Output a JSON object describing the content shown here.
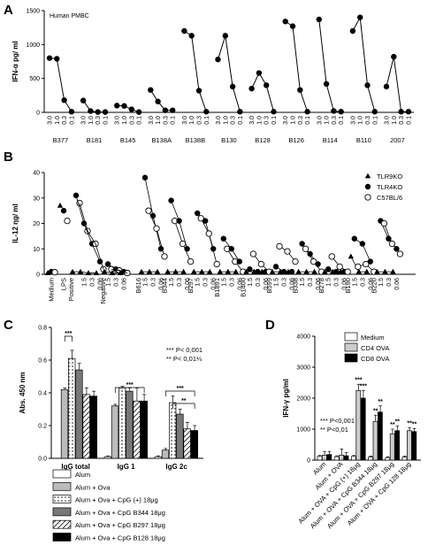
{
  "chart_data": [
    {
      "panel": "A",
      "type": "line",
      "annotation": "Human PMBC",
      "ylabel": "IFN-α pg/ ml",
      "ylim": [
        0,
        1500
      ],
      "yticks": [
        "0",
        "500",
        "1000",
        "1500"
      ],
      "dose_labels": [
        "3.0",
        "1.0",
        "0.3",
        "0.1"
      ],
      "groups": [
        {
          "name": "B377",
          "values": [
            800,
            790,
            180,
            10
          ]
        },
        {
          "name": "B181",
          "values": [
            175,
            20,
            5,
            5
          ]
        },
        {
          "name": "B145",
          "values": [
            100,
            95,
            45,
            5
          ]
        },
        {
          "name": "B138A",
          "values": [
            330,
            160,
            30,
            30
          ]
        },
        {
          "name": "B138B",
          "values": [
            1200,
            1130,
            320,
            10
          ]
        },
        {
          "name": "B130",
          "values": [
            780,
            1130,
            380,
            10
          ]
        },
        {
          "name": "B128",
          "values": [
            350,
            580,
            400,
            10
          ]
        },
        {
          "name": "B126",
          "values": [
            1340,
            1270,
            330,
            10
          ]
        },
        {
          "name": "B114",
          "values": [
            1370,
            420,
            20,
            10
          ]
        },
        {
          "name": "B110",
          "values": [
            1200,
            1400,
            400,
            10
          ]
        },
        {
          "name": "2007",
          "values": [
            380,
            820,
            10,
            10
          ]
        }
      ]
    },
    {
      "panel": "B",
      "type": "scatter",
      "ylabel": "IL-12 ηg/ ml",
      "ylim": [
        0,
        40
      ],
      "yticks": [
        "0",
        "10",
        "20",
        "30",
        "40"
      ],
      "dose_labels": [
        "1.5",
        "0.3",
        "0.06"
      ],
      "legend": [
        "TLR9KO",
        "TLR4KO",
        "C57BL/6"
      ],
      "controls": [
        {
          "name": "Medium",
          "values": [
            [
              0.5,
              1.0,
              0.8
            ]
          ]
        },
        {
          "name": "LPS",
          "values": [
            [
              27,
              25,
              21
            ]
          ]
        },
        {
          "name": "Positive",
          "values": [
            [
              1,
              31,
              28
            ],
            [
              1,
              20,
              17
            ],
            [
              0.5,
              12,
              12
            ],
            [
              0.5,
              5,
              2
            ]
          ]
        },
        {
          "name": "Negative",
          "values": [
            [
              1,
              4,
              2
            ],
            [
              0.5,
              2,
              1.5
            ],
            [
              0.5,
              1,
              0.5
            ]
          ]
        }
      ],
      "groups": [
        {
          "name": "B616",
          "values": [
            [
              1,
              38,
              25
            ],
            [
              1,
              23,
              18
            ],
            [
              1,
              10,
              7
            ]
          ]
        },
        {
          "name": "B344",
          "values": [
            [
              1,
              29,
              21
            ],
            [
              1,
              21,
              12
            ],
            [
              1,
              10,
              5
            ]
          ]
        },
        {
          "name": "B297",
          "values": [
            [
              1,
              24,
              22
            ],
            [
              1,
              21,
              16
            ],
            [
              1,
              10,
              4
            ]
          ]
        },
        {
          "name": "B1891",
          "values": [
            [
              1,
              14,
              10
            ],
            [
              1,
              10,
              5
            ],
            [
              1,
              5,
              1
            ]
          ]
        },
        {
          "name": "B1400",
          "values": [
            [
              1,
              2,
              8
            ],
            [
              1,
              1,
              4
            ],
            [
              1,
              1,
              1
            ]
          ]
        },
        {
          "name": "B599",
          "values": [
            [
              1,
              3,
              11
            ],
            [
              1,
              1,
              9
            ],
            [
              1,
              1,
              5
            ]
          ]
        },
        {
          "name": "B338",
          "values": [
            [
              1,
              12,
              10
            ],
            [
              1,
              8,
              5
            ],
            [
              1,
              4,
              1
            ]
          ]
        },
        {
          "name": "B278",
          "values": [
            [
              1,
              2,
              7
            ],
            [
              1,
              1,
              3
            ],
            [
              1,
              1,
              1
            ]
          ]
        },
        {
          "name": "B190",
          "values": [
            [
              7,
              14,
              3
            ],
            [
              1,
              12,
              4
            ],
            [
              1,
              5,
              1
            ]
          ]
        },
        {
          "name": "B220",
          "values": [
            [
              1,
              21,
              20
            ],
            [
              1,
              14,
              12
            ],
            [
              1,
              10,
              8
            ]
          ]
        }
      ]
    },
    {
      "panel": "C",
      "type": "bar",
      "ylabel": "Abs. 450 nm",
      "ylim": [
        0,
        0.8
      ],
      "yticks": [
        "0.0",
        "0.2",
        "0.4",
        "0.6",
        "0.8"
      ],
      "categories": [
        "IgG total",
        "IgG 1",
        "IgG 2c"
      ],
      "series": [
        {
          "name": "Alum",
          "values": [
            0.0,
            0.01,
            0.01
          ]
        },
        {
          "name": "Alum + Ova",
          "values": [
            0.42,
            0.32,
            0.05
          ]
        },
        {
          "name": "Alum + Ova + CpG (+) 18μg",
          "values": [
            0.61,
            0.43,
            0.34
          ]
        },
        {
          "name": "Alum + Ova + CpG B344 18μg",
          "values": [
            0.54,
            0.41,
            0.27
          ]
        },
        {
          "name": "Alum + Ova + CpG B297 18μg",
          "values": [
            0.39,
            0.35,
            0.18
          ]
        },
        {
          "name": "Alum + Ova + CpG B128 18μg",
          "values": [
            0.38,
            0.35,
            0.17
          ]
        }
      ],
      "errors": [
        [
          0.0,
          0.005,
          0.005
        ],
        [
          0.01,
          0.01,
          0.01
        ],
        [
          0.05,
          0.01,
          0.04
        ],
        [
          0.04,
          0.02,
          0.03
        ],
        [
          0.04,
          0.08,
          0.04
        ],
        [
          0.03,
          0.04,
          0.03
        ]
      ],
      "sig_labels": [
        "***",
        "***",
        "***",
        "**"
      ],
      "note_lines": [
        "*** P< 0,001",
        "** P< 0,01¼"
      ]
    },
    {
      "panel": "D",
      "type": "bar",
      "ylabel": "IFN-γ pg/ml",
      "ylim": [
        0,
        4000
      ],
      "yticks": [
        "0",
        "1000",
        "2000",
        "3000",
        "4000"
      ],
      "categories": [
        "Alum",
        "Alum + OVA",
        "Alum + OVA + CpG (+) 18μg",
        "Alum + OVA + CpG B344 18μg",
        "Alum + OVA + CpG B297 18μg",
        "Alum + OVA + CpG 128 18μg"
      ],
      "series": [
        {
          "name": "Medium",
          "values": [
            120,
            110,
            120,
            100,
            80,
            100
          ]
        },
        {
          "name": "CD4 OVA",
          "values": [
            160,
            160,
            2250,
            1250,
            850,
            950
          ]
        },
        {
          "name": "CD8 OVA",
          "values": [
            180,
            140,
            2000,
            1550,
            950,
            920
          ]
        }
      ],
      "errors": [
        [
          30,
          30,
          30,
          30,
          30,
          30
        ],
        [
          120,
          200,
          200,
          200,
          150,
          100
        ],
        [
          100,
          100,
          250,
          200,
          150,
          100
        ]
      ],
      "sig_labels": [
        "***",
        "***",
        "**",
        "**",
        "**",
        "**",
        "**",
        "**"
      ],
      "note_lines": [
        "*** P<0,001",
        "** P<0,01"
      ]
    }
  ],
  "panel_letters": [
    "A",
    "B",
    "C",
    "D"
  ]
}
